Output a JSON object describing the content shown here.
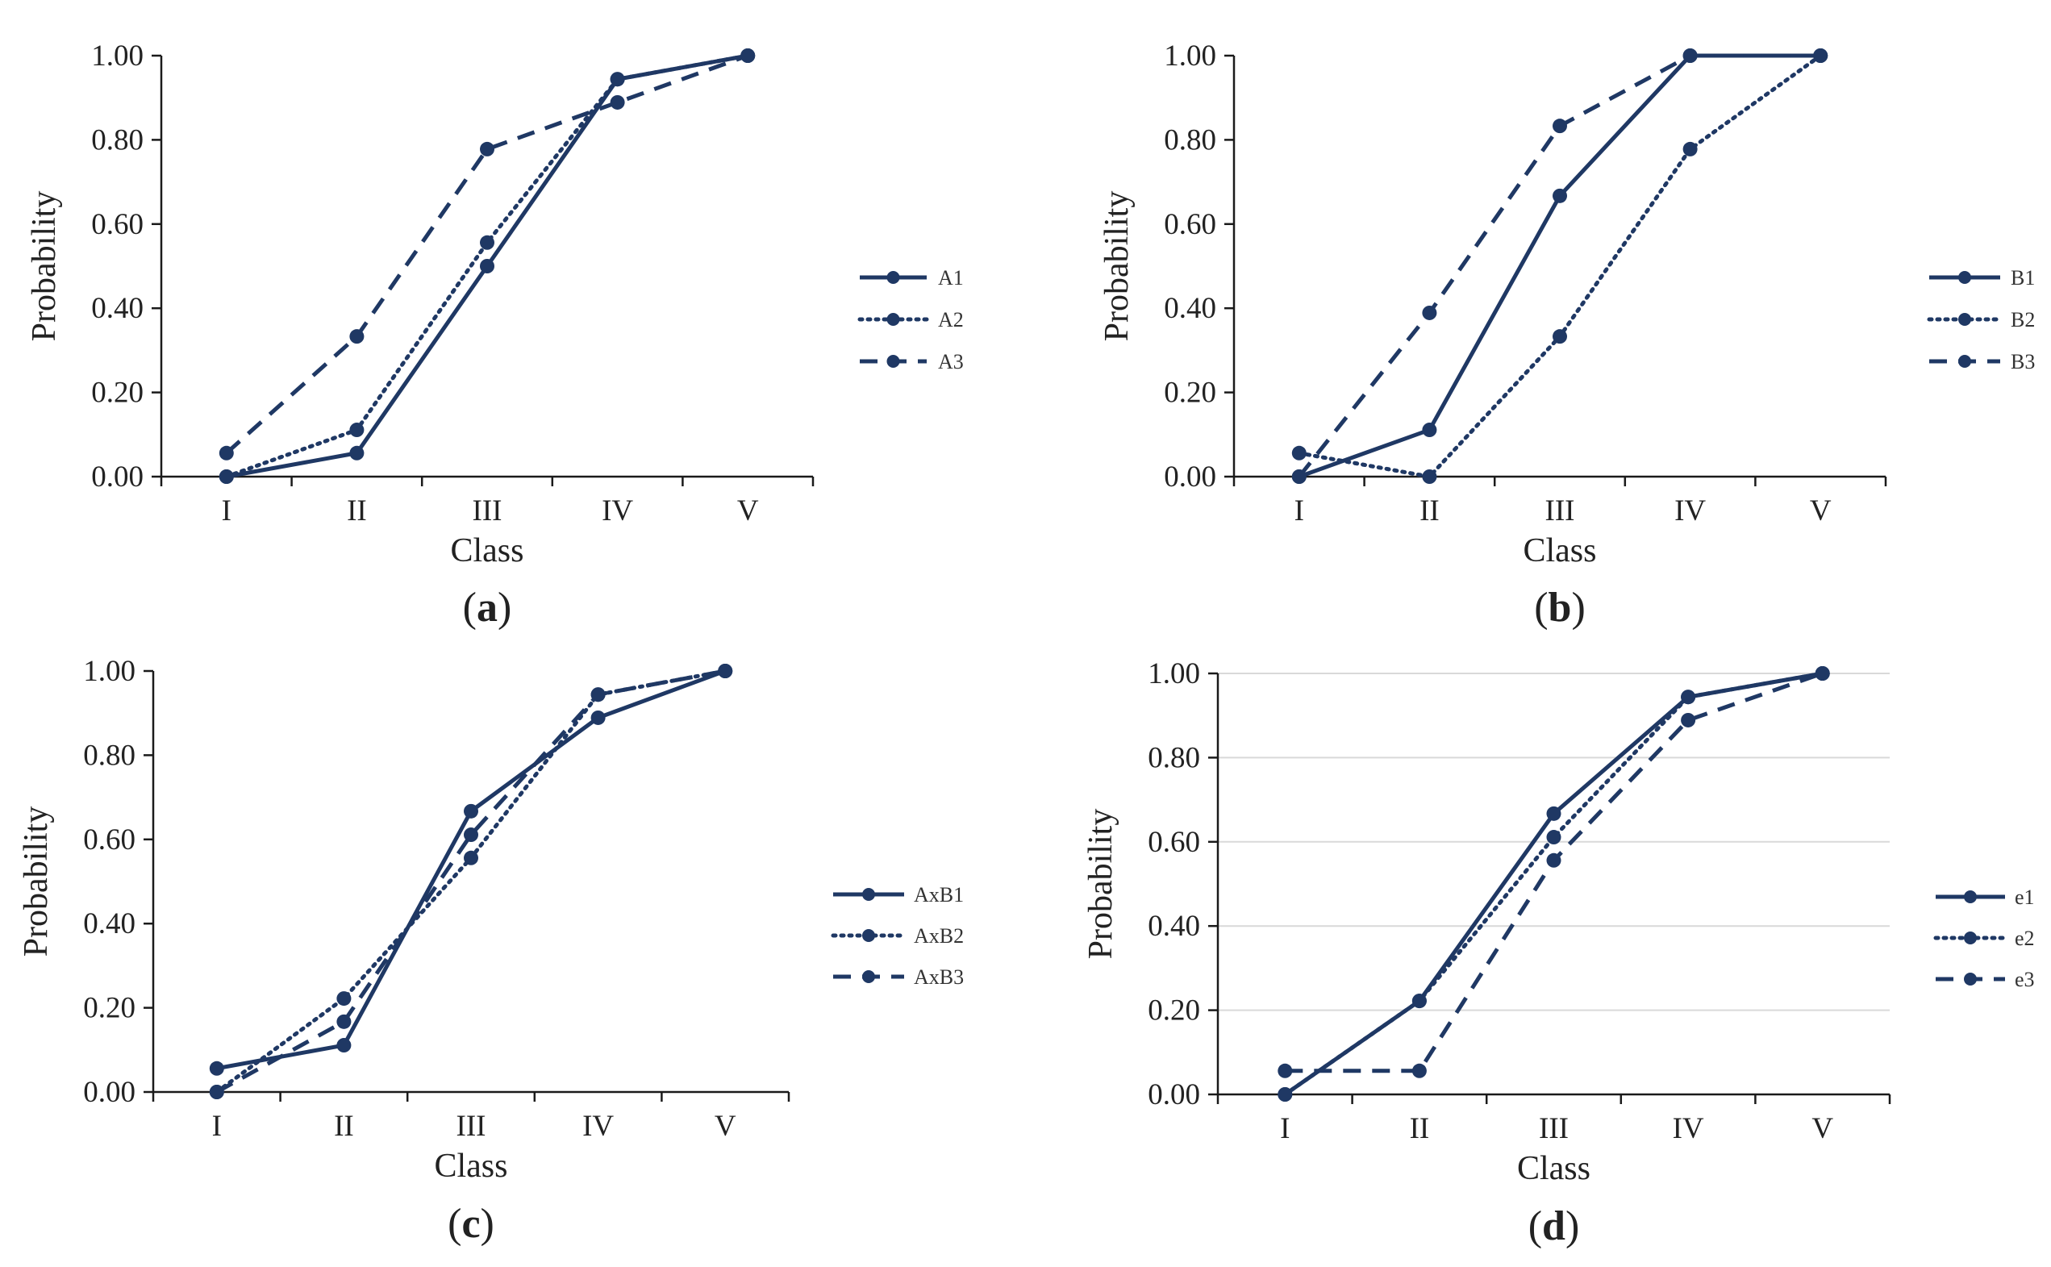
{
  "chart_data": [
    {
      "type": "line",
      "panel": "a",
      "panel_label": "a",
      "xlabel": "Class",
      "ylabel": "Probability",
      "categories": [
        "I",
        "II",
        "III",
        "IV",
        "V"
      ],
      "ylim": [
        0,
        1
      ],
      "yticks": [
        "0.00",
        "0.20",
        "0.40",
        "0.60",
        "0.80",
        "1.00"
      ],
      "gridlines": false,
      "legend_position": "right",
      "series": [
        {
          "name": "A1",
          "style": "solid",
          "values": [
            0.0,
            0.056,
            0.5,
            0.944,
            1.0
          ]
        },
        {
          "name": "A2",
          "style": "dotted",
          "values": [
            0.0,
            0.111,
            0.556,
            0.944,
            1.0
          ]
        },
        {
          "name": "A3",
          "style": "dashed",
          "values": [
            0.056,
            0.333,
            0.778,
            0.889,
            1.0
          ]
        }
      ]
    },
    {
      "type": "line",
      "panel": "b",
      "panel_label": "b",
      "xlabel": "Class",
      "ylabel": "Probability",
      "categories": [
        "I",
        "II",
        "III",
        "IV",
        "V"
      ],
      "ylim": [
        0,
        1
      ],
      "yticks": [
        "0.00",
        "0.20",
        "0.40",
        "0.60",
        "0.80",
        "1.00"
      ],
      "gridlines": false,
      "legend_position": "right",
      "series": [
        {
          "name": "B1",
          "style": "solid",
          "values": [
            0.0,
            0.111,
            0.667,
            1.0,
            1.0
          ]
        },
        {
          "name": "B2",
          "style": "dotted",
          "values": [
            0.056,
            0.0,
            0.333,
            0.778,
            1.0
          ]
        },
        {
          "name": "B3",
          "style": "dashed",
          "values": [
            0.0,
            0.389,
            0.833,
            1.0,
            1.0
          ]
        }
      ]
    },
    {
      "type": "line",
      "panel": "c",
      "panel_label": "c",
      "xlabel": "Class",
      "ylabel": "Probability",
      "categories": [
        "I",
        "II",
        "III",
        "IV",
        "V"
      ],
      "ylim": [
        0,
        1
      ],
      "yticks": [
        "0.00",
        "0.20",
        "0.40",
        "0.60",
        "0.80",
        "1.00"
      ],
      "gridlines": false,
      "legend_position": "right",
      "series": [
        {
          "name": "AxB1",
          "style": "solid",
          "values": [
            0.056,
            0.111,
            0.667,
            0.889,
            1.0
          ]
        },
        {
          "name": "AxB2",
          "style": "dotted",
          "values": [
            0.0,
            0.222,
            0.556,
            0.944,
            1.0
          ]
        },
        {
          "name": "AxB3",
          "style": "dashed",
          "values": [
            0.0,
            0.167,
            0.611,
            0.944,
            1.0
          ]
        }
      ]
    },
    {
      "type": "line",
      "panel": "d",
      "panel_label": "d",
      "xlabel": "Class",
      "ylabel": "Probability",
      "categories": [
        "I",
        "II",
        "III",
        "IV",
        "V"
      ],
      "ylim": [
        0,
        1
      ],
      "yticks": [
        "0.00",
        "0.20",
        "0.40",
        "0.60",
        "0.80",
        "1.00"
      ],
      "gridlines": true,
      "legend_position": "right",
      "series": [
        {
          "name": "e1",
          "style": "solid",
          "values": [
            0.0,
            0.222,
            0.667,
            0.944,
            1.0
          ]
        },
        {
          "name": "e2",
          "style": "dotted",
          "values": [
            0.0,
            0.222,
            0.611,
            0.944,
            1.0
          ]
        },
        {
          "name": "e3",
          "style": "dashed",
          "values": [
            0.056,
            0.056,
            0.556,
            0.889,
            1.0
          ]
        }
      ]
    }
  ],
  "colors": {
    "series": "#1f3864",
    "axis": "#1a1a1a",
    "grid": "#d9d9d9",
    "text": "#222222"
  }
}
